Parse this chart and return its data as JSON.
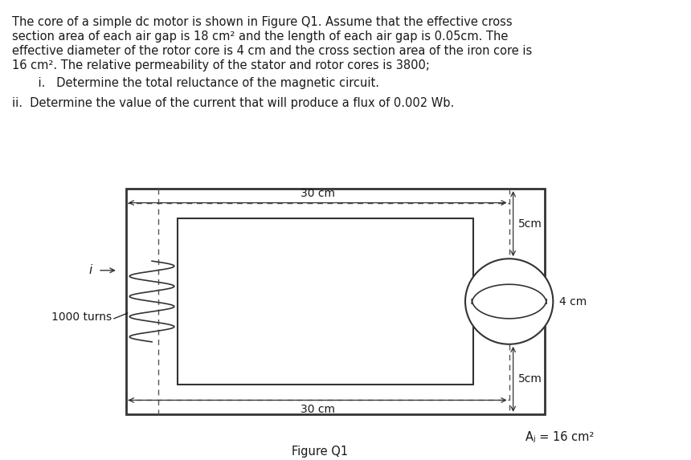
{
  "bg_color": "#ffffff",
  "text_color": "#1a1a1a",
  "para_line1": "The core of a simple dc motor is shown in Figure Q1. Assume that the effective cross",
  "para_line2": "section area of each air gap is 18 cm² and the length of each air gap is 0.05cm. The",
  "para_line3": "effective diameter of the rotor core is 4 cm and the cross section area of the iron core is",
  "para_line4": "16 cm². The relative permeability of the stator and rotor cores is 3800;",
  "item_i": "    i.   Determine the total reluctance of the magnetic circuit.",
  "item_ii": "ii.  Determine the value of the current that will produce a flux of 0.002 Wb.",
  "fig_label": "Figure Q1",
  "annotation_Ac": "Aⱼ = 16 cm²",
  "label_30cm_top": "30 cm",
  "label_30cm_bot": "30 cm",
  "label_5cm_top": "5cm",
  "label_5cm_bot": "5cm",
  "label_4cm": "4 cm",
  "label_i": "i",
  "label_1000turns": "1000 turns",
  "font_size_body": 10.5,
  "font_size_diagram": 10.0
}
